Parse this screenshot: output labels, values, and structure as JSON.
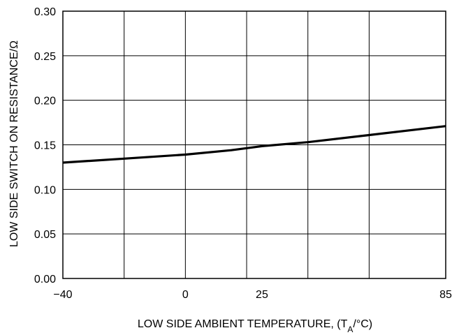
{
  "chart_data": {
    "type": "line",
    "xlabel": "LOW SIDE AMBIENT TEMPERATURE, (T",
    "xlabel_sub": "A",
    "xlabel_tail": "/°C)",
    "ylabel": "LOW SIDE SWITCH ON RESISTANCE/Ω",
    "xlim": [
      -40,
      85
    ],
    "ylim": [
      0,
      0.3
    ],
    "x_ticks": [
      -40,
      0,
      25,
      85
    ],
    "x_tick_labels": [
      "−40",
      "0",
      "25",
      "85"
    ],
    "x_gridlines": [
      -40,
      -20,
      0,
      20,
      40,
      60,
      85
    ],
    "y_ticks": [
      0,
      0.05,
      0.1,
      0.15,
      0.2,
      0.25,
      0.3
    ],
    "y_tick_labels": [
      "0.00",
      "0.05",
      "0.10",
      "0.15",
      "0.20",
      "0.25",
      "0.30"
    ],
    "grid": true,
    "series": [
      {
        "x": [
          -40,
          -20,
          0,
          15,
          25,
          40,
          60,
          85
        ],
        "y": [
          0.13,
          0.1345,
          0.139,
          0.144,
          0.1485,
          0.153,
          0.161,
          0.171
        ]
      }
    ]
  }
}
